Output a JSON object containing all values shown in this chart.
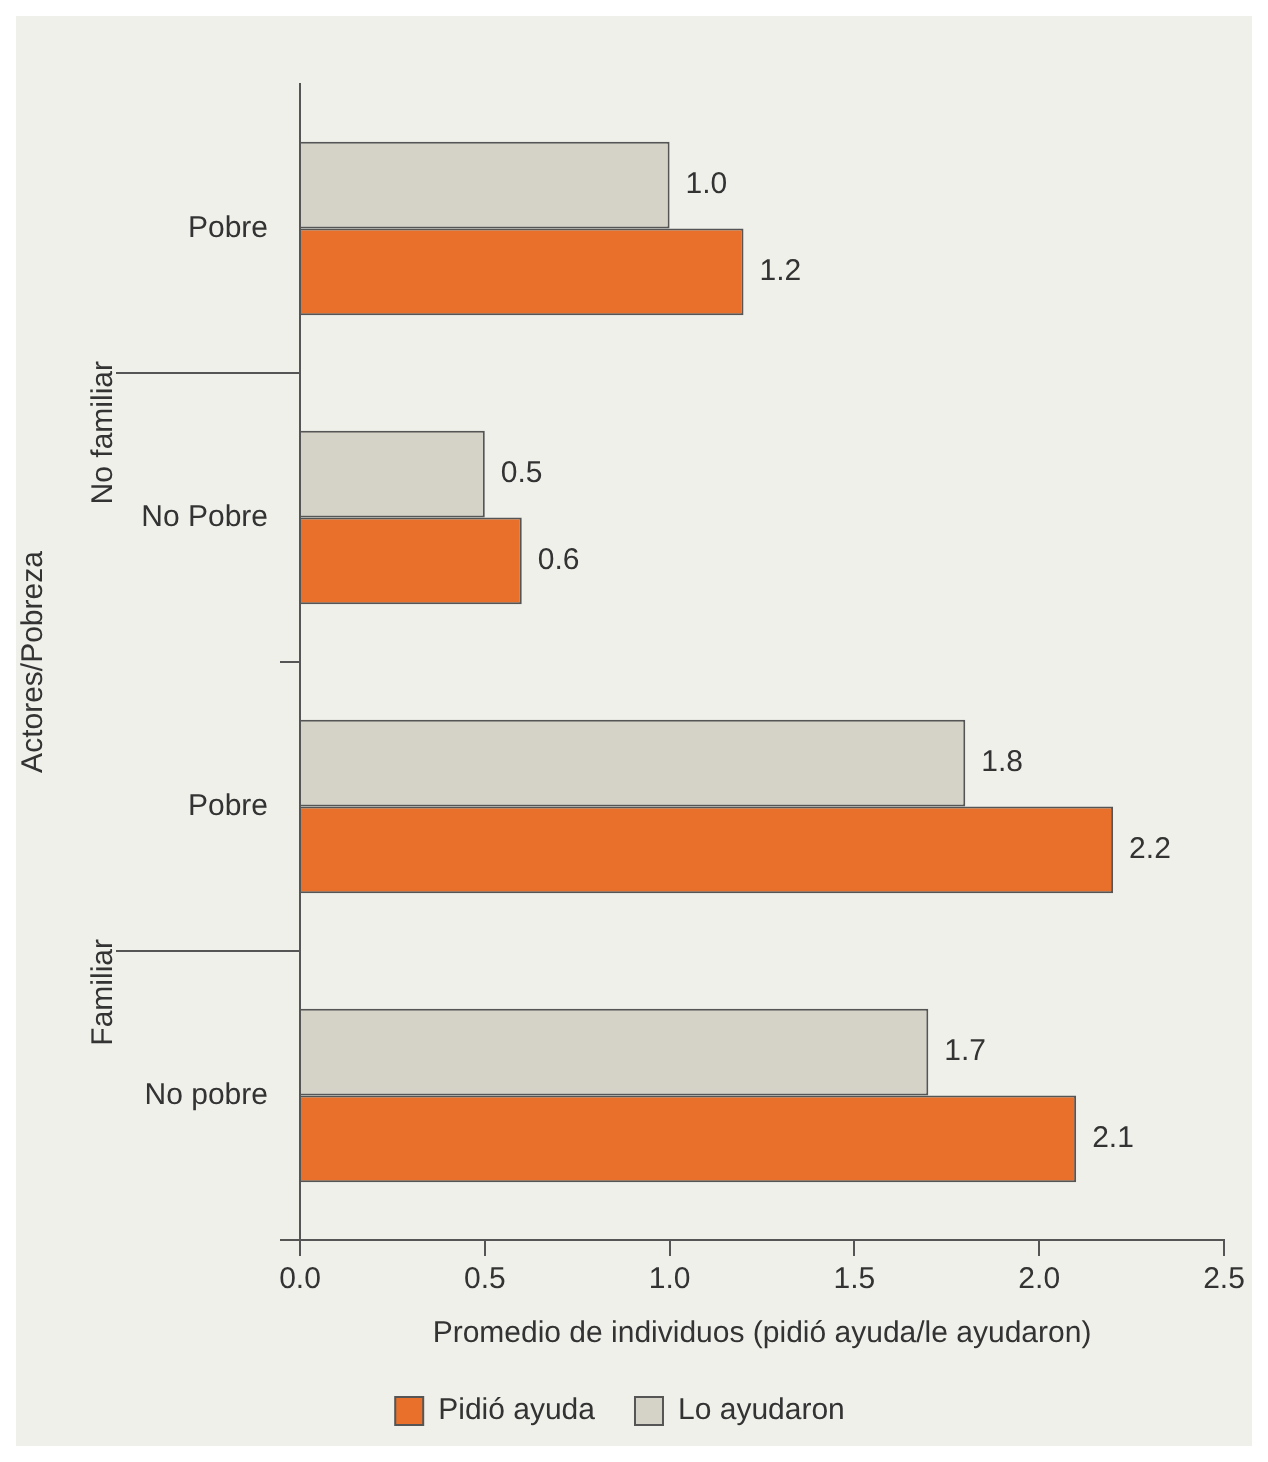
{
  "chart_data": {
    "type": "bar",
    "orientation": "horizontal",
    "xlabel": "Promedio de individuos (pidió ayuda/le ayudaron)",
    "ylabel": "Actores/Pobreza",
    "categories": [
      "Pobre",
      "No Pobre",
      "Pobre",
      "No pobre"
    ],
    "annotations": [
      "No familiar",
      "Familiar"
    ],
    "series": [
      {
        "name": "Pidió ayuda",
        "color": "#e8702a",
        "values": [
          1.2,
          0.6,
          2.2,
          2.1
        ],
        "value_labels": [
          "1.2",
          "0.6",
          "2.2",
          "2.1"
        ]
      },
      {
        "name": "Lo ayudaron",
        "color": "#d5d3c8",
        "values": [
          1.0,
          0.5,
          1.8,
          1.7
        ],
        "value_labels": [
          "1.0",
          "0.5",
          "1.8",
          "1.7"
        ]
      }
    ],
    "xlim": [
      0,
      2.5
    ],
    "xticks": [
      {
        "value": 0,
        "label": "0.0"
      },
      0.5,
      {
        "value": 1,
        "label": "1.0"
      },
      1.5,
      {
        "value": 2,
        "label": "2.0"
      },
      2.5
    ],
    "legend": "bottom"
  }
}
